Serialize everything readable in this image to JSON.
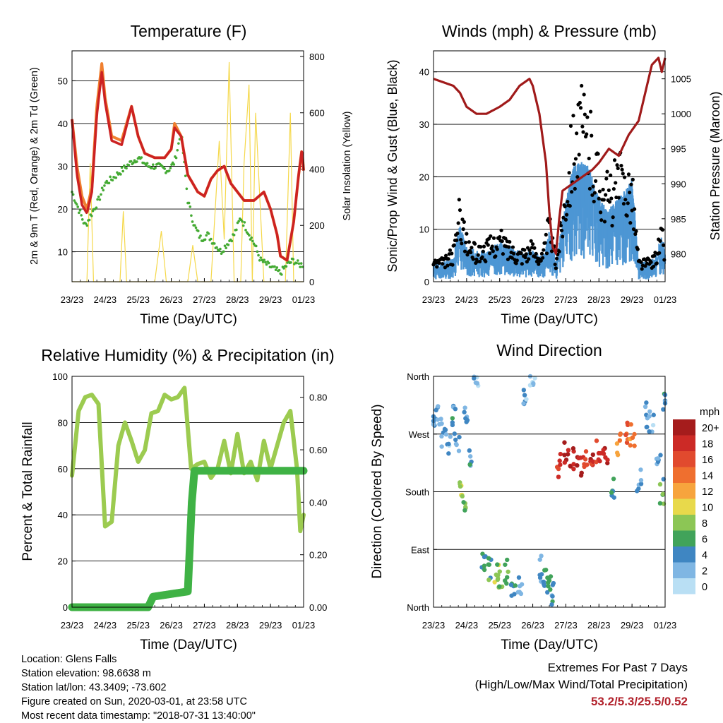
{
  "footer": {
    "location": "Location: Glens Falls",
    "elevation": "Station elevation: 98.6638 m",
    "latlon": "Station lat/lon: 43.3409; -73.602",
    "created": "Figure created on Sun, 2020-03-01, at 23:58 UTC",
    "recent": "Most recent data timestamp: \"2018-07-31 13:40:00\""
  },
  "extremes": {
    "title": "Extremes For Past 7 Days",
    "subtitle": "(High/Low/Max Wind/Total Precipitation)",
    "values": "53.2/5.3/25.5/0.52",
    "color": "#b2222c"
  },
  "colors": {
    "temp_2m": "#cc2222",
    "temp_9m": "#f08030",
    "dewpoint": "#44aa33",
    "solar": "#f5d84a",
    "wind": "#4d96d4",
    "gust": "#000000",
    "pressure": "#a01a1a",
    "rh": "#9ccb50",
    "precip": "#3fb245"
  },
  "wind_speed_scale": {
    "unit": "mph",
    "labels": [
      "20+",
      "18",
      "16",
      "14",
      "12",
      "10",
      "8",
      "6",
      "4",
      "2",
      "0"
    ],
    "colors": [
      "#a51c1c",
      "#cc2a26",
      "#e14a2e",
      "#ef6f2f",
      "#f7a43d",
      "#e8d94b",
      "#8cc655",
      "#41a35a",
      "#3f86c2",
      "#7fb6e3",
      "#b9dff4"
    ]
  },
  "chart_data": [
    {
      "type": "line",
      "title": "Temperature (F)",
      "xlabel": "Time (Day/UTC)",
      "ylabel": "2m & 9m T (Red, Orange) & 2m Td (Green)",
      "ylabel_right": "Solar Insolation (Yellow)",
      "x_ticks": [
        "23/23",
        "24/23",
        "25/23",
        "26/23",
        "27/23",
        "28/23",
        "29/23",
        "01/23"
      ],
      "x_range": [
        0,
        7
      ],
      "ylim": [
        3,
        57
      ],
      "y_ticks": [
        10,
        20,
        30,
        40,
        50
      ],
      "ylim_right": [
        0,
        820
      ],
      "y_ticks_right": [
        0,
        200,
        400,
        600,
        800
      ],
      "grid": true,
      "series": [
        {
          "x": [
            0,
            0.15,
            0.3,
            0.45,
            0.6,
            0.75,
            0.9,
            1.0,
            1.2,
            1.5,
            1.8,
            2.0,
            2.2,
            2.5,
            2.8,
            3.0,
            3.1,
            3.3,
            3.5,
            3.8,
            4.0,
            4.2,
            4.4,
            4.6,
            4.8,
            5.0,
            5.2,
            5.5,
            5.8,
            6.0,
            6.2,
            6.3,
            6.5,
            6.7,
            6.85,
            6.95,
            7.0
          ],
          "values": [
            41,
            28,
            21,
            19,
            24,
            42,
            52,
            45,
            36,
            35,
            44,
            37,
            33,
            32,
            32,
            34,
            39,
            37,
            28,
            24,
            23,
            27,
            29,
            30,
            26,
            24,
            22,
            22,
            24,
            20,
            14,
            9,
            8,
            17,
            28,
            34,
            29
          ]
        },
        {
          "x": [
            0,
            0.15,
            0.3,
            0.45,
            0.6,
            0.75,
            0.9,
            1.0,
            1.2,
            1.5,
            1.8,
            2.0,
            2.2,
            2.5,
            2.8,
            3.0,
            3.1,
            3.3,
            3.5,
            3.8,
            4.0,
            4.2,
            4.4,
            4.6,
            4.8,
            5.0,
            5.2,
            5.5,
            5.8,
            6.0,
            6.2,
            6.3,
            6.5,
            6.7,
            6.85,
            6.95,
            7.0
          ],
          "values": [
            41,
            30,
            23,
            20,
            25,
            44,
            54,
            46,
            37,
            36,
            44,
            37,
            33,
            32,
            32,
            34,
            40,
            37,
            28,
            24,
            23,
            27,
            29,
            30,
            26,
            24,
            22,
            22,
            24,
            20,
            14,
            9,
            8,
            17,
            28,
            34,
            29
          ]
        },
        {
          "x": [
            0,
            0.2,
            0.4,
            0.6,
            0.8,
            1.0,
            1.2,
            1.5,
            1.8,
            2.0,
            2.3,
            2.6,
            2.9,
            3.1,
            3.3,
            3.5,
            3.7,
            3.9,
            4.1,
            4.3,
            4.5,
            4.7,
            4.9,
            5.1,
            5.3,
            5.5,
            5.7,
            5.9,
            6.1,
            6.3,
            6.5,
            6.7,
            6.85,
            7.0
          ],
          "values": [
            24,
            20,
            16,
            19,
            22,
            26,
            27,
            29,
            31,
            32,
            30,
            30,
            29,
            31,
            38,
            22,
            16,
            13,
            14,
            12,
            10,
            12,
            14,
            18,
            15,
            12,
            8,
            7,
            6,
            5,
            7,
            8,
            7,
            7
          ]
        }
      ],
      "solar": {
        "x": [
          0,
          0.45,
          0.55,
          0.65,
          0.85,
          1.45,
          1.55,
          1.65,
          1.85,
          2.5,
          2.7,
          2.85,
          3.5,
          3.65,
          3.8,
          4.2,
          4.45,
          4.6,
          4.75,
          4.9,
          5.1,
          5.2,
          5.35,
          5.45,
          5.55,
          5.8,
          6.0,
          6.45,
          6.6,
          6.7,
          6.9,
          7.0
        ],
        "values": [
          0,
          0,
          420,
          0,
          0,
          0,
          250,
          0,
          0,
          0,
          180,
          0,
          0,
          130,
          0,
          0,
          500,
          150,
          780,
          0,
          0,
          420,
          700,
          0,
          600,
          0,
          0,
          0,
          600,
          0,
          0,
          0
        ]
      }
    },
    {
      "type": "scatter",
      "title": "Winds (mph) & Pressure (mb)",
      "xlabel": "Time (Day/UTC)",
      "ylabel": "Sonic/Prop Wind & Gust (Blue, Black)",
      "ylabel_right": "Station Pressure (Maroon)",
      "x_ticks": [
        "23/23",
        "24/23",
        "25/23",
        "26/23",
        "27/23",
        "28/23",
        "29/23",
        "01/23"
      ],
      "x_range": [
        0,
        7
      ],
      "ylim": [
        0,
        44
      ],
      "y_ticks": [
        0,
        10,
        20,
        30,
        40
      ],
      "ylim_right": [
        976,
        1009
      ],
      "y_ticks_right": [
        980,
        985,
        990,
        995,
        1000,
        1005
      ],
      "grid": true,
      "wind": {
        "x": [
          0,
          0.3,
          0.6,
          0.8,
          1.0,
          1.3,
          1.6,
          2.0,
          2.3,
          2.6,
          3.0,
          3.3,
          3.5,
          3.7,
          3.9,
          4.2,
          4.5,
          4.7,
          5.0,
          5.3,
          5.6,
          6.0,
          6.2,
          6.5,
          6.7,
          6.9,
          7.0
        ],
        "values": [
          2,
          2,
          3,
          9,
          5,
          4,
          4,
          6,
          5,
          4,
          4,
          3,
          8,
          2,
          10,
          20,
          21,
          20,
          14,
          12,
          14,
          18,
          2,
          2,
          3,
          7,
          4
        ]
      },
      "gust": {
        "x": [
          0,
          0.3,
          0.6,
          0.8,
          1.0,
          1.3,
          1.6,
          2.0,
          2.3,
          2.6,
          3.0,
          3.3,
          3.5,
          3.7,
          3.9,
          4.2,
          4.5,
          4.7,
          5.0,
          5.3,
          5.6,
          6.0,
          6.2,
          6.5,
          6.7,
          6.9,
          7.0
        ],
        "values": [
          4,
          4,
          6,
          15,
          8,
          6,
          7,
          9,
          7,
          6,
          7,
          5,
          12,
          4,
          14,
          30,
          33,
          30,
          22,
          18,
          22,
          20,
          4,
          4,
          5,
          10,
          6
        ]
      },
      "pressure": {
        "x": [
          0,
          0.3,
          0.6,
          0.8,
          1.0,
          1.3,
          1.6,
          2.0,
          2.3,
          2.6,
          2.9,
          3.0,
          3.2,
          3.4,
          3.5,
          3.6,
          3.7,
          3.8,
          3.9,
          4.2,
          4.5,
          4.8,
          5.0,
          5.3,
          5.6,
          5.9,
          6.2,
          6.4,
          6.6,
          6.8,
          6.9,
          7.0
        ],
        "values": [
          1005,
          1004.5,
          1004,
          1003,
          1001,
          1000,
          1000,
          1001,
          1002,
          1004,
          1005,
          1004,
          1000,
          993,
          986,
          981,
          980,
          985,
          989,
          990,
          991,
          992,
          993,
          995,
          994,
          997,
          999,
          1003,
          1007,
          1008,
          1006,
          1008
        ]
      }
    },
    {
      "type": "line",
      "title": "Relative Humidity (%) & Precipitation (in)",
      "xlabel": "Time (Day/UTC)",
      "ylabel": "Percent & Total Rainfall",
      "x_ticks": [
        "23/23",
        "24/23",
        "25/23",
        "26/23",
        "27/23",
        "28/23",
        "29/23",
        "01/23"
      ],
      "x_range": [
        0,
        7
      ],
      "ylim": [
        0,
        100
      ],
      "y_ticks": [
        0,
        20,
        40,
        60,
        80,
        100
      ],
      "ylim_right": [
        0,
        0.88
      ],
      "y_ticks_right": [
        "0.00",
        "0.20",
        "0.40",
        "0.60",
        "0.80"
      ],
      "grid": true,
      "series": [
        {
          "name": "RH",
          "x": [
            0,
            0.2,
            0.4,
            0.6,
            0.8,
            1.0,
            1.2,
            1.4,
            1.6,
            1.8,
            2.0,
            2.2,
            2.4,
            2.6,
            2.8,
            3.0,
            3.2,
            3.4,
            3.6,
            3.8,
            4.0,
            4.2,
            4.4,
            4.6,
            4.8,
            5.0,
            5.2,
            5.4,
            5.6,
            5.8,
            6.0,
            6.2,
            6.4,
            6.6,
            6.8,
            6.9,
            7.0
          ],
          "values": [
            57,
            85,
            91,
            92,
            88,
            35,
            37,
            70,
            80,
            72,
            63,
            68,
            84,
            85,
            92,
            90,
            91,
            95,
            60,
            62,
            63,
            56,
            60,
            72,
            58,
            75,
            58,
            63,
            55,
            72,
            60,
            70,
            80,
            85,
            60,
            33,
            40
          ]
        },
        {
          "name": "Precip",
          "x": [
            0,
            2.3,
            2.45,
            3.5,
            3.55,
            3.62,
            3.7,
            7.0
          ],
          "values": [
            0,
            0,
            0.04,
            0.06,
            0.2,
            0.4,
            0.52,
            0.52
          ]
        }
      ]
    },
    {
      "type": "scatter",
      "title": "Wind Direction",
      "xlabel": "Time (Day/UTC)",
      "ylabel": "Direction (Colored By Speed)",
      "x_ticks": [
        "23/23",
        "24/23",
        "25/23",
        "26/23",
        "27/23",
        "28/23",
        "29/23",
        "01/23"
      ],
      "x_range": [
        0,
        7
      ],
      "y_ticks": [
        "North",
        "East",
        "South",
        "West",
        "North"
      ],
      "ylim": [
        0,
        360
      ],
      "grid": true,
      "series": [
        {
          "x": [
            0,
            0.15,
            0.3,
            0.45,
            0.6,
            0.7,
            0.85,
            0.9,
            1.0,
            1.15,
            1.3,
            1.5,
            1.7,
            1.9,
            2.0,
            2.2,
            2.4,
            2.6,
            2.8,
            3.0,
            3.2,
            3.4,
            3.5,
            3.65,
            3.8,
            4.0,
            4.2,
            4.4,
            4.6,
            4.8,
            5.0,
            5.2,
            5.4,
            5.6,
            5.8,
            6.0,
            6.2,
            6.4,
            6.6,
            6.8,
            6.9,
            7.0
          ],
          "values": [
            280,
            300,
            270,
            250,
            300,
            260,
            180,
            170,
            300,
            240,
            350,
            70,
            60,
            50,
            40,
            55,
            30,
            40,
            320,
            350,
            60,
            40,
            30,
            20,
            220,
            240,
            235,
            225,
            230,
            225,
            240,
            235,
            185,
            255,
            270,
            265,
            200,
            300,
            290,
            240,
            180,
            320
          ],
          "speeds": [
            3,
            2,
            3,
            2,
            4,
            3,
            9,
            7,
            3,
            4,
            2,
            5,
            6,
            8,
            7,
            6,
            4,
            3,
            2,
            2,
            3,
            5,
            6,
            4,
            18,
            20,
            19,
            20,
            17,
            18,
            17,
            19,
            5,
            13,
            16,
            14,
            3,
            3,
            2,
            3,
            6,
            4
          ]
        }
      ]
    }
  ]
}
